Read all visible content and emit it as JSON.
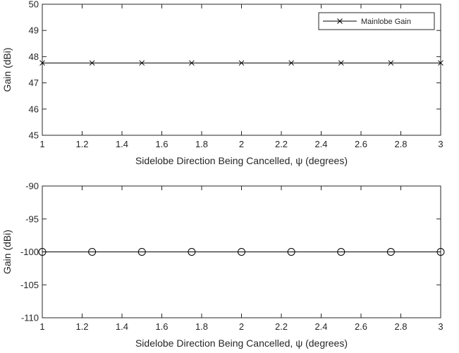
{
  "chart_data": [
    {
      "type": "line",
      "xlabel": "Sidelobe Direction Being Cancelled, ψ (degrees)",
      "ylabel": "Gain (dBi)",
      "xlim": [
        1,
        3
      ],
      "ylim": [
        45,
        50
      ],
      "xticks": [
        1,
        1.2,
        1.4,
        1.6,
        1.8,
        2,
        2.2,
        2.4,
        2.6,
        2.8,
        3
      ],
      "yticks": [
        45,
        46,
        47,
        48,
        49,
        50
      ],
      "grid": false,
      "legend": "top-right",
      "series": [
        {
          "name": "Mainlobe Gain",
          "marker": "x",
          "color": "#000000",
          "x": [
            1,
            1.25,
            1.5,
            1.75,
            2,
            2.25,
            2.5,
            2.75,
            3
          ],
          "y": [
            47.76,
            47.76,
            47.76,
            47.76,
            47.76,
            47.76,
            47.76,
            47.76,
            47.76
          ]
        }
      ]
    },
    {
      "type": "line",
      "xlabel": "Sidelobe Direction Being Cancelled, ψ (degrees)",
      "ylabel": "Gain (dBi)",
      "xlim": [
        1,
        3
      ],
      "ylim": [
        -110,
        -90
      ],
      "xticks": [
        1,
        1.2,
        1.4,
        1.6,
        1.8,
        2,
        2.2,
        2.4,
        2.6,
        2.8,
        3
      ],
      "yticks": [
        -110,
        -105,
        -100,
        -95,
        -90
      ],
      "grid": false,
      "legend": "none",
      "series": [
        {
          "marker": "o",
          "color": "#000000",
          "x": [
            1,
            1.25,
            1.5,
            1.75,
            2,
            2.25,
            2.5,
            2.75,
            3
          ],
          "y": [
            -100,
            -100,
            -100,
            -100,
            -100,
            -100,
            -100,
            -100,
            -100
          ]
        }
      ]
    }
  ]
}
